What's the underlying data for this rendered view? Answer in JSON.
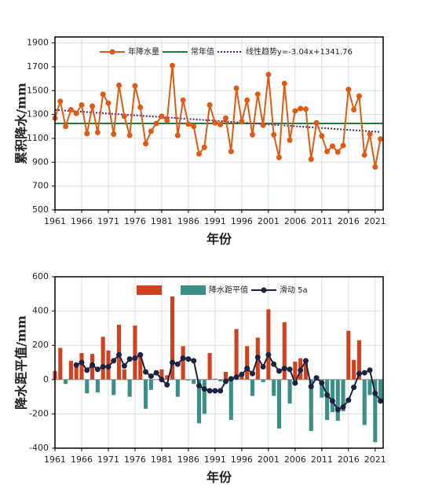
{
  "chart_data": [
    {
      "type": "line",
      "x_label": "年份",
      "y_label": "累积降水/mm",
      "x": [
        1961,
        1962,
        1963,
        1964,
        1965,
        1966,
        1967,
        1968,
        1969,
        1970,
        1971,
        1972,
        1973,
        1974,
        1975,
        1976,
        1977,
        1978,
        1979,
        1980,
        1981,
        1982,
        1983,
        1984,
        1985,
        1986,
        1987,
        1988,
        1989,
        1990,
        1991,
        1992,
        1993,
        1994,
        1995,
        1996,
        1997,
        1998,
        1999,
        2000,
        2001,
        2002,
        2003,
        2004,
        2005,
        2006,
        2007,
        2008,
        2009,
        2010,
        2011,
        2012,
        2013,
        2014,
        2015,
        2016,
        2017,
        2018,
        2019,
        2020,
        2021,
        2022
      ],
      "series": [
        {
          "name": "年降水量",
          "color": "#e05a12",
          "values": [
            1270,
            1410,
            1200,
            1340,
            1310,
            1380,
            1140,
            1370,
            1150,
            1470,
            1395,
            1135,
            1545,
            1285,
            1125,
            1540,
            1360,
            1055,
            1160,
            1225,
            1285,
            1250,
            1710,
            1125,
            1420,
            1220,
            1200,
            970,
            1025,
            1380,
            1230,
            1215,
            1270,
            990,
            1520,
            1240,
            1420,
            1130,
            1470,
            1210,
            1635,
            1130,
            940,
            1560,
            1085,
            1330,
            1350,
            1345,
            925,
            1230,
            1120,
            990,
            1035,
            985,
            1040,
            1510,
            1340,
            1455,
            960,
            1135,
            860,
            1095
          ]
        }
      ],
      "normal": {
        "name": "常年值",
        "value": 1225,
        "color": "#1e7b3a"
      },
      "trend": {
        "name": "线性趋势",
        "slope": -3.04,
        "intercept": 1341.76,
        "color": "#4b1f8c",
        "label": "y=-3.04x+1341.76"
      },
      "xlim": [
        1961,
        2022.5
      ],
      "xticks": [
        1961,
        1966,
        1971,
        1976,
        1981,
        1986,
        1991,
        1996,
        2001,
        2006,
        2011,
        2016,
        2021
      ],
      "ylim": [
        500,
        1950
      ],
      "yticks": [
        500,
        700,
        900,
        1100,
        1300,
        1500,
        1700,
        1900
      ],
      "grid": true
    },
    {
      "type": "bar_line",
      "x_label": "年份",
      "y_label": "降水距平值/mm",
      "x": [
        1961,
        1962,
        1963,
        1964,
        1965,
        1966,
        1967,
        1968,
        1969,
        1970,
        1971,
        1972,
        1973,
        1974,
        1975,
        1976,
        1977,
        1978,
        1979,
        1980,
        1981,
        1982,
        1983,
        1984,
        1985,
        1986,
        1987,
        1988,
        1989,
        1990,
        1991,
        1992,
        1993,
        1994,
        1995,
        1996,
        1997,
        1998,
        1999,
        2000,
        2001,
        2002,
        2003,
        2004,
        2005,
        2006,
        2007,
        2008,
        2009,
        2010,
        2011,
        2012,
        2013,
        2014,
        2015,
        2016,
        2017,
        2018,
        2019,
        2020,
        2021,
        2022
      ],
      "series": [
        {
          "name": "降水距平值",
          "kind": "bar",
          "color": "#d1401f",
          "negative_color": "#3a8f88",
          "values": [
            50,
            185,
            -25,
            110,
            90,
            155,
            -80,
            150,
            -75,
            250,
            170,
            -90,
            320,
            60,
            -100,
            315,
            135,
            -170,
            -60,
            0,
            60,
            25,
            485,
            -100,
            195,
            -5,
            -25,
            -255,
            -200,
            155,
            5,
            -10,
            45,
            -235,
            295,
            15,
            195,
            -95,
            245,
            -15,
            410,
            -95,
            -285,
            335,
            -140,
            105,
            125,
            120,
            -300,
            5,
            -105,
            -235,
            -190,
            -240,
            -185,
            285,
            115,
            230,
            -265,
            -90,
            -365,
            -130
          ]
        },
        {
          "name": "滑动 5a",
          "kind": "line",
          "color": "#1c2340",
          "values": [
            null,
            null,
            null,
            null,
            85,
            100,
            55,
            85,
            60,
            75,
            75,
            110,
            145,
            80,
            120,
            125,
            145,
            45,
            20,
            40,
            0,
            -30,
            100,
            90,
            125,
            120,
            110,
            -35,
            -55,
            -65,
            -65,
            -65,
            -10,
            5,
            15,
            30,
            65,
            35,
            130,
            75,
            145,
            90,
            50,
            65,
            60,
            -20,
            55,
            110,
            -40,
            10,
            -20,
            -90,
            -125,
            -175,
            -160,
            -120,
            -45,
            35,
            40,
            55,
            -80,
            -125
          ]
        }
      ],
      "xlim": [
        1961,
        2022.5
      ],
      "xticks": [
        1961,
        1966,
        1971,
        1976,
        1981,
        1986,
        1991,
        1996,
        2001,
        2006,
        2011,
        2016,
        2021
      ],
      "ylim": [
        -400,
        600
      ],
      "yticks": [
        -400,
        -200,
        0,
        200,
        400,
        600
      ],
      "grid": true
    }
  ]
}
